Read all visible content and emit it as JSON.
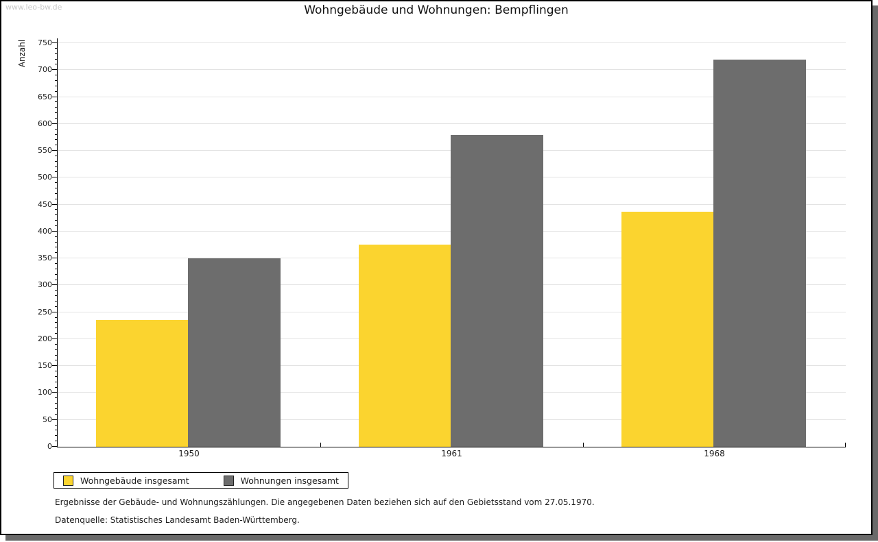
{
  "watermark": "www.leo-bw.de",
  "chart_data": {
    "type": "bar",
    "title": "Wohngebäude und Wohnungen: Bempflingen",
    "xlabel": "",
    "ylabel": "Anzahl",
    "categories": [
      "1950",
      "1961",
      "1968"
    ],
    "series": [
      {
        "name": "Wohngebäude insgesamt",
        "color": "#FBD42F",
        "values": [
          235,
          376,
          437
        ]
      },
      {
        "name": "Wohnungen insgesamt",
        "color": "#6D6D6D",
        "values": [
          350,
          580,
          720
        ]
      }
    ],
    "ylim": [
      0,
      750
    ],
    "ytick_step": 50,
    "minor_tick_step": 10,
    "grid": true,
    "legend_position": "bottom-left"
  },
  "footnotes": [
    "Ergebnisse der Gebäude- und Wohnungszählungen. Die angegebenen Daten beziehen sich auf den Gebietsstand vom 27.05.1970.",
    "Datenquelle: Statistisches Landesamt Baden-Württemberg."
  ],
  "colors": {
    "bar_yellow": "#FBD42F",
    "bar_gray": "#6D6D6D",
    "gridline": "#E3E3E3",
    "axis": "#000000",
    "watermark_text": "#C9C9C9",
    "frame_shadow": "#6A6A6A"
  }
}
